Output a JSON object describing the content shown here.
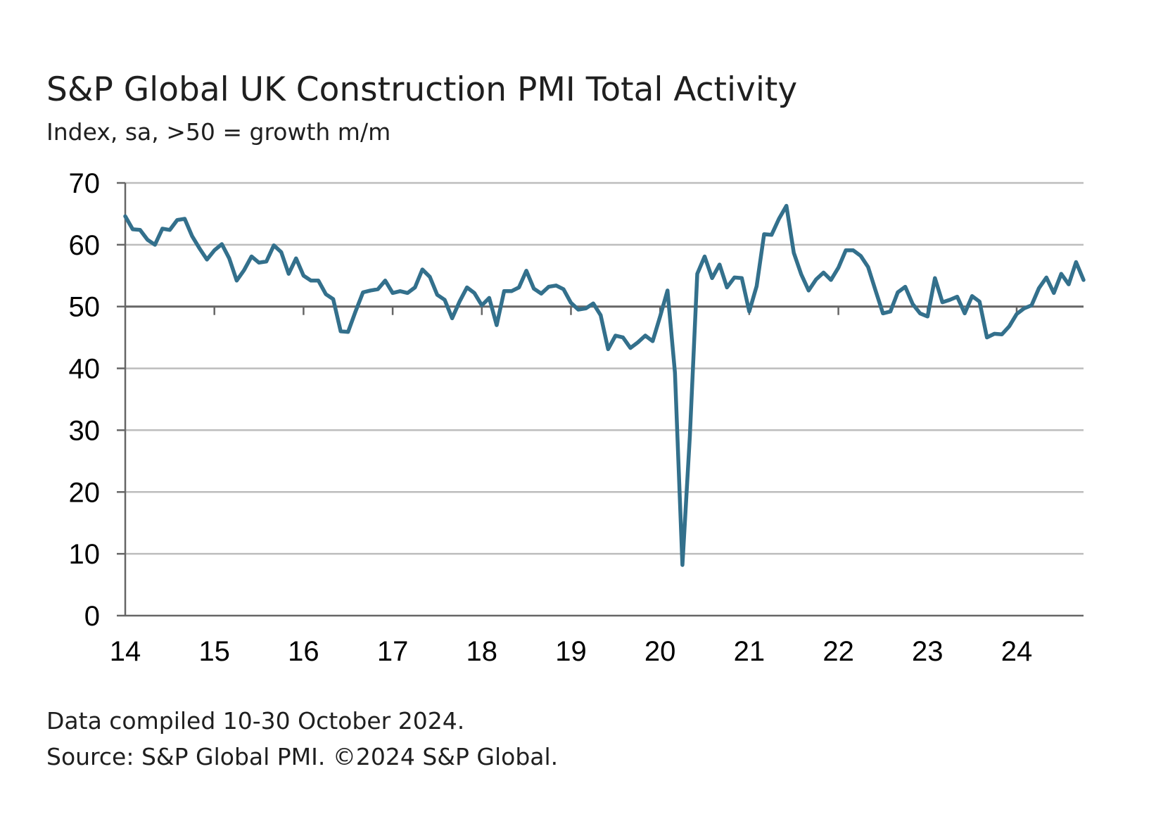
{
  "title": "S&P Global UK Construction PMI Total Activity",
  "subtitle": "Index, sa, >50 = growth m/m",
  "footer": {
    "line1": "Data compiled 10-30 October 2024.",
    "line2": "Source: S&P Global PMI. ©2024 S&P Global."
  },
  "colors": {
    "line": "#33708c",
    "grid": "#bdbdbd",
    "axis": "#666666",
    "reference": "#666666"
  },
  "chart_data": {
    "type": "line",
    "title": "S&P Global UK Construction PMI Total Activity",
    "subtitle": "Index, sa, >50 = growth m/m",
    "xlabel": "",
    "ylabel": "",
    "ylim": [
      0,
      70
    ],
    "yticks": [
      "0",
      "10",
      "20",
      "30",
      "40",
      "50",
      "60",
      "70"
    ],
    "xticks": [
      "14",
      "15",
      "16",
      "17",
      "18",
      "19",
      "20",
      "21",
      "22",
      "23",
      "24"
    ],
    "x_start": "2014-01",
    "x_end": "2024-10",
    "reference_line": 50,
    "grid": true,
    "legend": "none",
    "series": [
      {
        "values": [
          64.6,
          62.5,
          62.4,
          60.8,
          60.0,
          62.6,
          62.4,
          64.0,
          64.2,
          61.4,
          59.4,
          57.6,
          59.1,
          60.1,
          57.8,
          54.2,
          55.9,
          58.1,
          57.1,
          57.3,
          59.9,
          58.8,
          55.3,
          57.8,
          55.0,
          54.2,
          54.2,
          52.0,
          51.2,
          46.0,
          45.9,
          49.2,
          52.3,
          52.6,
          52.8,
          54.2,
          52.2,
          52.5,
          52.2,
          53.1,
          56.0,
          54.8,
          51.9,
          51.1,
          48.1,
          50.8,
          53.1,
          52.2,
          50.2,
          51.4,
          47.0,
          52.5,
          52.5,
          53.1,
          55.8,
          52.9,
          52.1,
          53.2,
          53.4,
          52.8,
          50.6,
          49.5,
          49.7,
          50.5,
          48.6,
          43.1,
          45.3,
          45.0,
          43.3,
          44.2,
          45.3,
          44.4,
          48.4,
          52.6,
          39.3,
          8.2,
          28.9,
          55.3,
          58.1,
          54.6,
          56.8,
          53.1,
          54.7,
          54.6,
          49.2,
          53.3,
          61.7,
          61.6,
          64.2,
          66.3,
          58.7,
          55.2,
          52.6,
          54.4,
          55.5,
          54.3,
          56.3,
          59.1,
          59.1,
          58.2,
          56.4,
          52.6,
          48.9,
          49.2,
          52.3,
          53.2,
          50.4,
          48.9,
          48.4,
          54.6,
          50.7,
          51.1,
          51.6,
          48.9,
          51.7,
          50.8,
          45.0,
          45.6,
          45.5,
          46.8,
          48.8,
          49.7,
          50.2,
          53.0,
          54.7,
          52.2,
          55.3,
          53.6,
          57.2,
          54.3
        ]
      }
    ]
  }
}
